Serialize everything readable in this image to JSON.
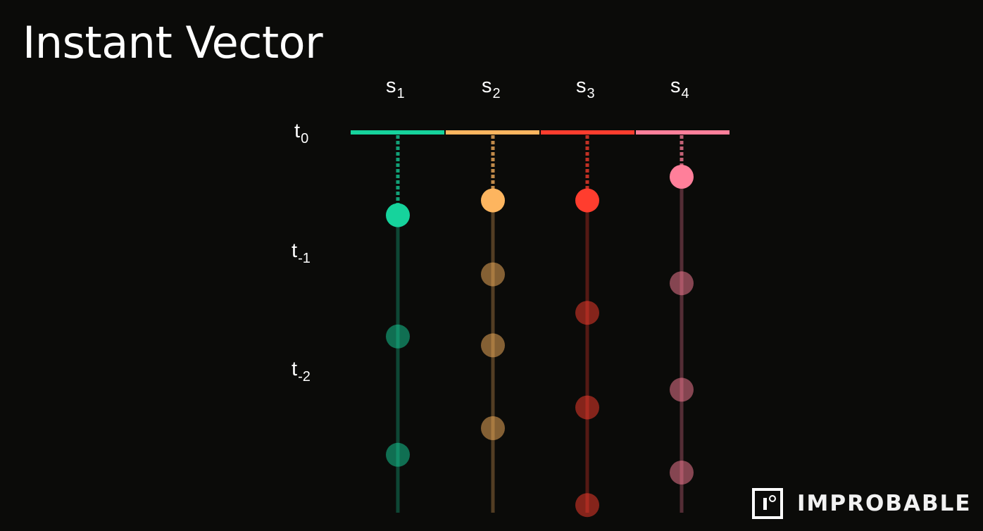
{
  "title": "Instant Vector",
  "series": [
    {
      "base": "s",
      "sub": "1",
      "color": "#16d39c",
      "samples": [
        -2.8,
        -6.9,
        -10.9
      ]
    },
    {
      "base": "s",
      "sub": "2",
      "color": "#fdb55f",
      "samples": [
        -2.3,
        -4.8,
        -7.2,
        -10.0
      ]
    },
    {
      "base": "s",
      "sub": "3",
      "color": "#ff3d2e",
      "samples": [
        -2.3,
        -6.1,
        -9.3,
        -12.6
      ]
    },
    {
      "base": "s",
      "sub": "4",
      "color": "#ff7f9a",
      "samples": [
        -1.5,
        -5.1,
        -8.7,
        -11.5
      ]
    }
  ],
  "times": [
    {
      "base": "t",
      "sub": "0",
      "t": 0
    },
    {
      "base": "t",
      "sub": "-1",
      "t": -4
    },
    {
      "base": "t",
      "sub": "-2",
      "t": -8
    }
  ],
  "logo": {
    "text": "IMPROBABLE",
    "mark": "improbable-logo-mark"
  }
}
